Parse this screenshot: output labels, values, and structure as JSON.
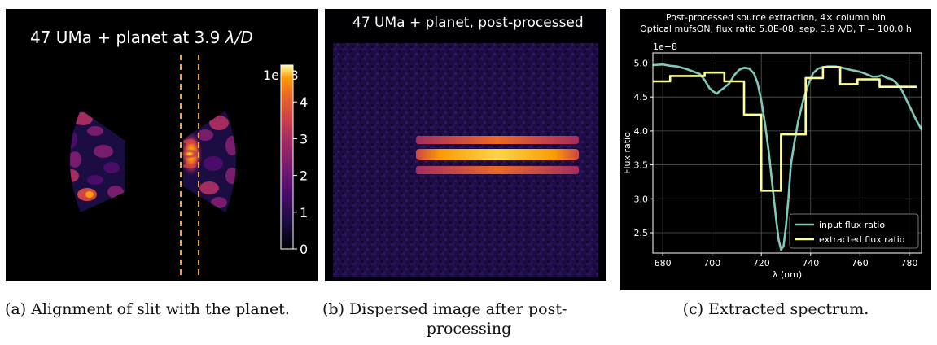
{
  "figure_a": {
    "title_prefix": "47 UMa + planet at 3.9 ",
    "title_lambda": "λ",
    "title_suffix": "/D",
    "colorbar_offset": "1e−8",
    "colorbar_ticks": [
      "0",
      "1",
      "2",
      "3",
      "4"
    ],
    "colorbar_range": [
      0,
      5
    ],
    "slit_color": "#f5a623",
    "caption": "(a) Alignment of slit with the planet."
  },
  "figure_b": {
    "title": "47 UMa + planet, post-processed",
    "caption_line1": "(b) Dispersed image after post-",
    "caption_line2": "processing"
  },
  "figure_c": {
    "caption": "(c) Extracted spectrum."
  },
  "chart_data": [
    {
      "type": "line",
      "title_line1": "Post-processed source extraction, 4× column bin",
      "title_line2": "Optical mufsON, flux ratio 5.0E-08, sep. 3.9 λ/D, T = 100.0 h",
      "xlabel": "λ (nm)",
      "ylabel": "Flux ratio",
      "y_offset_label": "1e−8",
      "xlim": [
        676,
        785
      ],
      "ylim": [
        2.2,
        5.15
      ],
      "xticks": [
        680,
        700,
        720,
        740,
        760,
        780
      ],
      "yticks": [
        2.5,
        3.0,
        3.5,
        4.0,
        4.5,
        5.0
      ],
      "grid": true,
      "legend_position": "lower-right",
      "series": [
        {
          "name": "input flux ratio",
          "color": "#7fc9b9",
          "x": [
            676,
            680,
            683,
            686,
            689,
            692,
            695,
            697,
            699,
            700.5,
            702,
            703.5,
            705,
            707,
            709,
            711,
            713,
            715,
            717,
            718.5,
            720,
            721.5,
            723,
            724.5,
            726,
            727,
            728,
            729,
            730,
            731,
            732,
            733.5,
            735,
            737,
            739,
            741,
            743,
            745,
            747,
            750,
            753,
            756,
            759,
            761,
            763,
            765,
            767,
            769,
            771,
            773,
            775,
            777,
            779,
            781,
            783,
            785
          ],
          "y": [
            4.97,
            4.98,
            4.96,
            4.95,
            4.92,
            4.88,
            4.84,
            4.75,
            4.63,
            4.58,
            4.55,
            4.6,
            4.64,
            4.7,
            4.82,
            4.9,
            4.93,
            4.92,
            4.85,
            4.7,
            4.45,
            4.1,
            3.7,
            3.2,
            2.7,
            2.4,
            2.25,
            2.3,
            2.6,
            3.0,
            3.5,
            3.85,
            4.15,
            4.45,
            4.68,
            4.85,
            4.92,
            4.94,
            4.95,
            4.95,
            4.93,
            4.9,
            4.88,
            4.86,
            4.83,
            4.8,
            4.8,
            4.82,
            4.78,
            4.76,
            4.7,
            4.6,
            4.45,
            4.3,
            4.15,
            4.02
          ]
        },
        {
          "name": "extracted flux ratio",
          "color": "#ffff99",
          "x": [
            676,
            683,
            683,
            697,
            697,
            705,
            705,
            713,
            713,
            720,
            720,
            728,
            728,
            738,
            738,
            745,
            745,
            752,
            752,
            759,
            759,
            768,
            768,
            776,
            776,
            783
          ],
          "y": [
            4.73,
            4.73,
            4.81,
            4.81,
            4.86,
            4.86,
            4.73,
            4.73,
            4.24,
            4.24,
            3.12,
            3.12,
            3.95,
            3.95,
            4.78,
            4.78,
            4.94,
            4.94,
            4.69,
            4.69,
            4.76,
            4.76,
            4.65,
            4.65,
            4.65,
            4.65
          ]
        }
      ]
    }
  ]
}
